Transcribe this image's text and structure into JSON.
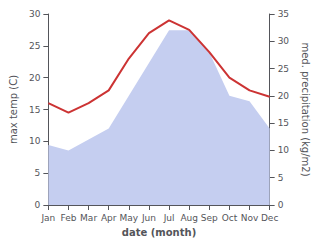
{
  "chart_data": {
    "type": "line",
    "xlabel": "date (month)",
    "ylabel": "max temp (C)",
    "y2label": "med. precipitation (kg/m2)",
    "categories": [
      "Jan",
      "Feb",
      "Mar",
      "Apr",
      "May",
      "Jun",
      "Jul",
      "Aug",
      "Sep",
      "Oct",
      "Nov",
      "Dec"
    ],
    "series": [
      {
        "type": "line",
        "color": "#cc3333",
        "values": [
          16,
          14.5,
          16,
          18,
          23,
          27,
          29,
          27.5,
          24,
          20,
          18,
          17
        ]
      },
      {
        "type": "area",
        "color": "#c5cef0",
        "axis": "y2",
        "values": [
          11,
          10,
          12,
          14,
          20,
          26,
          32,
          32,
          28,
          20,
          19,
          14
        ]
      }
    ],
    "ylim": [
      0,
      30
    ],
    "yticks": [
      0,
      5,
      10,
      15,
      20,
      25,
      30
    ],
    "y2lim": [
      0,
      35
    ],
    "y2ticks": [
      0,
      5,
      10,
      15,
      20,
      25,
      30,
      35
    ],
    "grid": false
  }
}
